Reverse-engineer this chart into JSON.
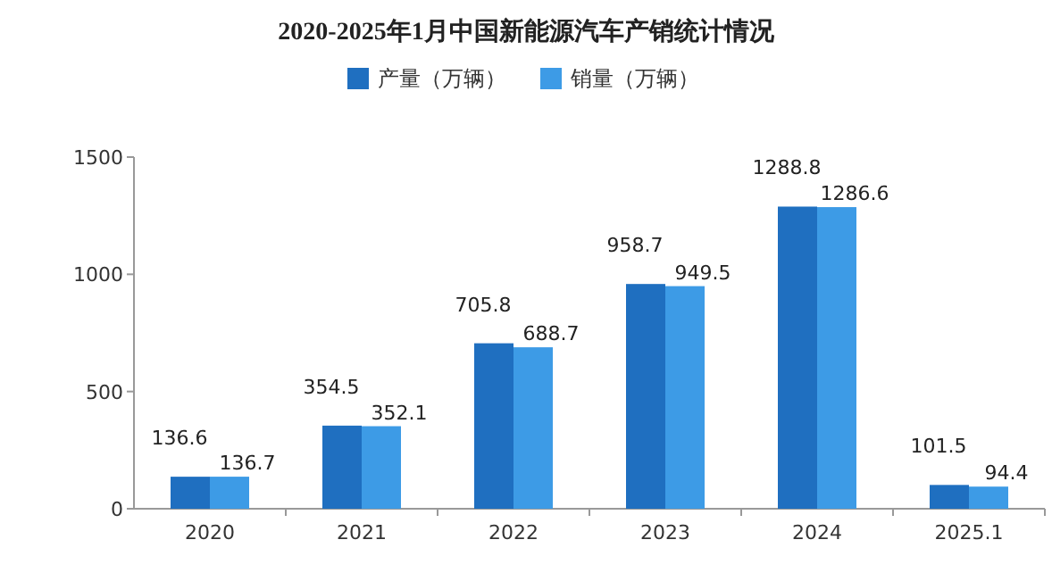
{
  "chart_data": {
    "type": "bar",
    "title": "2020-2025年1月中国新能源汽车产销统计情况",
    "categories": [
      "2020",
      "2021",
      "2022",
      "2023",
      "2024",
      "2025.1"
    ],
    "series": [
      {
        "name": "产量（万辆）",
        "color": "#1f6fc0",
        "values": [
          136.6,
          354.5,
          705.8,
          958.7,
          1288.8,
          101.5
        ]
      },
      {
        "name": "销量（万辆）",
        "color": "#3d9be6",
        "values": [
          136.7,
          352.1,
          688.7,
          949.5,
          1286.6,
          94.4
        ]
      }
    ],
    "ylim": [
      0,
      1500
    ],
    "yticks": [
      0,
      500,
      1000,
      1500
    ],
    "grid": false,
    "legend": "top",
    "data_labels": true
  }
}
